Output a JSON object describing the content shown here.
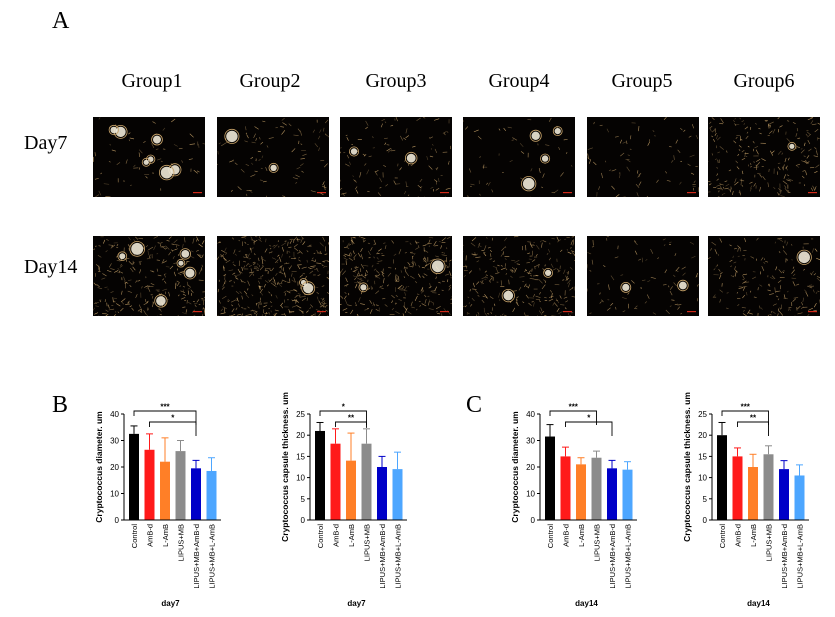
{
  "panel_labels": {
    "a": "A",
    "b": "B",
    "c": "C"
  },
  "groups": [
    "Group1",
    "Group2",
    "Group3",
    "Group4",
    "Group5",
    "Group6"
  ],
  "days": [
    "Day7",
    "Day14"
  ],
  "micrographs": {
    "background": "#050302",
    "texture_color": "#c9a46a",
    "cell_color": "#f1ead8",
    "scale_bar_color": "#d22a1a",
    "texture_density": [
      [
        0.15,
        0.22,
        0.28,
        0.12,
        0.18,
        0.55
      ],
      [
        0.7,
        0.95,
        0.75,
        0.65,
        0.2,
        0.45
      ]
    ],
    "cell_counts": [
      [
        7,
        2,
        2,
        4,
        0,
        1
      ],
      [
        6,
        2,
        2,
        2,
        2,
        1
      ]
    ]
  },
  "chart_data": [
    {
      "type": "bar",
      "categories": [
        "Control",
        "AmB-d",
        "L-AmB",
        "LIPUS+MB",
        "LIPUS+MB+AmB-d",
        "LIPUS+MB+L-AmB"
      ],
      "values": [
        32.5,
        26.5,
        22,
        26,
        19.5,
        18.5
      ],
      "errors": [
        3,
        6,
        9,
        4,
        3,
        5
      ],
      "colors": [
        "#000000",
        "#ff1a1a",
        "#ff7f27",
        "#8c8c8c",
        "#0000c8",
        "#4da6ff"
      ],
      "ylabel": "Cryptococcus diameter. um",
      "xlabel": "day7",
      "ylim": [
        0,
        40
      ],
      "yticks": [
        0,
        10,
        20,
        30,
        40
      ],
      "significance": [
        {
          "from": 0,
          "to": 4,
          "label": "***"
        },
        {
          "from": 1,
          "to": 4,
          "label": "*"
        }
      ]
    },
    {
      "type": "bar",
      "categories": [
        "Control",
        "AmB-d",
        "L-AmB",
        "LIPUS+MB",
        "LIPUS+MB+AmB-d",
        "LIPUS+MB+L-AmB"
      ],
      "values": [
        21,
        18,
        14,
        18,
        12.5,
        12
      ],
      "errors": [
        2,
        3.5,
        6.5,
        3.5,
        2.5,
        4
      ],
      "colors": [
        "#000000",
        "#ff1a1a",
        "#ff7f27",
        "#8c8c8c",
        "#0000c8",
        "#4da6ff"
      ],
      "ylabel": "Cryptococcus capsule thickness. um",
      "xlabel": "day7",
      "ylim": [
        0,
        25
      ],
      "yticks": [
        0,
        5,
        10,
        15,
        20,
        25
      ],
      "significance": [
        {
          "from": 0,
          "to": 3,
          "label": "*"
        },
        {
          "from": 1,
          "to": 3,
          "label": "**"
        }
      ]
    },
    {
      "type": "bar",
      "categories": [
        "Control",
        "AmB-d",
        "L-AmB",
        "LIPUS+MB",
        "LIPUS+MB+AmB-d",
        "LIPUS+MB+L-AmB"
      ],
      "values": [
        31.5,
        24,
        21,
        23.5,
        19.5,
        19
      ],
      "errors": [
        4.5,
        3.5,
        2.5,
        2.5,
        3,
        3
      ],
      "colors": [
        "#000000",
        "#ff1a1a",
        "#ff7f27",
        "#8c8c8c",
        "#0000c8",
        "#4da6ff"
      ],
      "ylabel": "Cryptococcus diameter. um",
      "xlabel": "day14",
      "ylim": [
        0,
        40
      ],
      "yticks": [
        0,
        10,
        20,
        30,
        40
      ],
      "significance": [
        {
          "from": 0,
          "to": 3,
          "label": "***"
        },
        {
          "from": 1,
          "to": 4,
          "label": "*"
        }
      ]
    },
    {
      "type": "bar",
      "categories": [
        "Control",
        "AmB-d",
        "L-AmB",
        "LIPUS+MB",
        "LIPUS+MB+AmB-d",
        "LIPUS+MB+L-AmB"
      ],
      "values": [
        20,
        15,
        12.5,
        15.5,
        12,
        10.5
      ],
      "errors": [
        3,
        2,
        3,
        2,
        2,
        2.5
      ],
      "colors": [
        "#000000",
        "#ff1a1a",
        "#ff7f27",
        "#8c8c8c",
        "#0000c8",
        "#4da6ff"
      ],
      "ylabel": "Cryptococcus capsule thickness. um",
      "xlabel": "day14",
      "ylim": [
        0,
        25
      ],
      "yticks": [
        0,
        5,
        10,
        15,
        20,
        25
      ],
      "significance": [
        {
          "from": 0,
          "to": 3,
          "label": "***"
        },
        {
          "from": 1,
          "to": 3,
          "label": "**"
        }
      ]
    }
  ]
}
